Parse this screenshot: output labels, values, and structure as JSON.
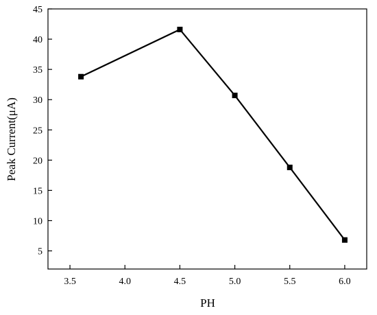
{
  "chart_data": {
    "type": "line",
    "xlabel": "PH",
    "ylabel": "Peak Current(μA)",
    "xlim": [
      3.3,
      6.2
    ],
    "ylim": [
      2,
      45
    ],
    "xticks": [
      3.5,
      4.0,
      4.5,
      5.0,
      5.5,
      6.0
    ],
    "xtick_labels": [
      "3.5",
      "4.0",
      "4.5",
      "5.0",
      "5.5",
      "6.0"
    ],
    "yticks": [
      5,
      10,
      15,
      20,
      25,
      30,
      35,
      40,
      45
    ],
    "ytick_labels": [
      "5",
      "10",
      "15",
      "20",
      "25",
      "30",
      "35",
      "40",
      "45"
    ],
    "grid": false,
    "series": [
      {
        "x": [
          3.6,
          4.5,
          5.0,
          5.5,
          6.0
        ],
        "y": [
          33.8,
          41.6,
          30.7,
          18.8,
          6.8
        ],
        "marker": "square",
        "color": "#000000"
      }
    ]
  }
}
